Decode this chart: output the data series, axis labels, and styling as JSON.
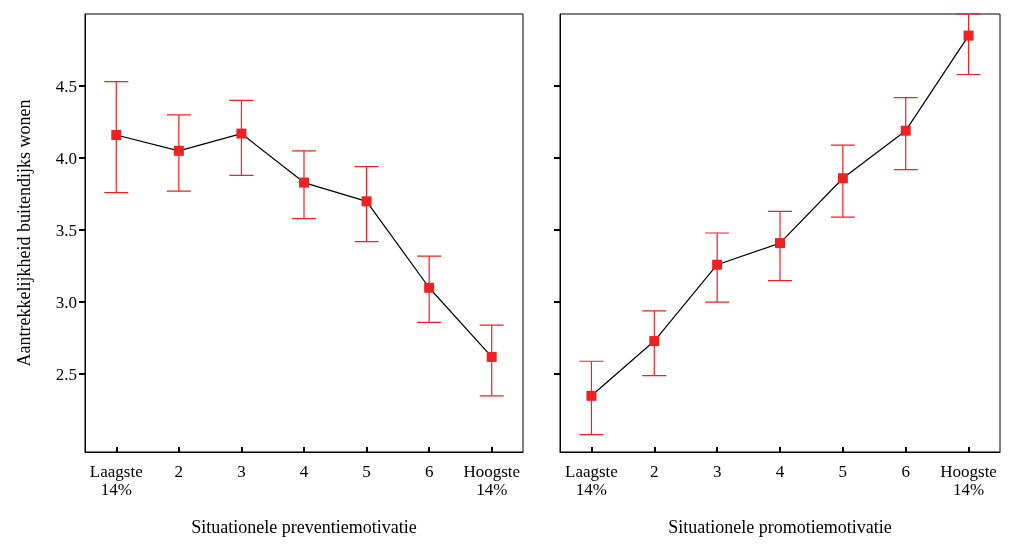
{
  "chart_data": [
    {
      "type": "line",
      "xlabel": "Situationele preventiemotivatie",
      "ylabel": "Aantrekkelijkheid buitendijks wonen",
      "categories": [
        "Laagste\n14%",
        "2",
        "3",
        "4",
        "5",
        "6",
        "Hoogste\n14%"
      ],
      "color": "#000000",
      "colors": [
        "#ee2222",
        "#ee2222",
        "#ee2222",
        "#ee2222",
        "#ee2222",
        "#ee2222",
        "#ee2222"
      ],
      "values": [
        4.16,
        4.05,
        4.17,
        3.83,
        3.7,
        3.1,
        2.62
      ],
      "errors": [
        [
          3.76,
          4.53
        ],
        [
          3.77,
          4.3
        ],
        [
          3.88,
          4.4
        ],
        [
          3.58,
          4.05
        ],
        [
          3.42,
          3.94
        ],
        [
          2.86,
          3.32
        ],
        [
          2.35,
          2.84
        ]
      ],
      "ylim": [
        1.96,
        5.0
      ],
      "yticks": [
        2.5,
        {
          "value": 3,
          "label": "3.0"
        },
        3.5,
        {
          "value": 4,
          "label": "4.0"
        },
        4.5
      ],
      "marker": "square",
      "grid": false
    },
    {
      "type": "line",
      "xlabel": "Situationele promotiemotivatie",
      "categories": [
        "Laagste\n14%",
        "2",
        "3",
        "4",
        "5",
        "6",
        "Hoogste\n14%"
      ],
      "color": "#000000",
      "colors": [
        "#ee2222",
        "#ee2222",
        "#ee2222",
        "#ee2222",
        "#ee2222",
        "#ee2222",
        "#ee2222"
      ],
      "values": [
        2.35,
        2.73,
        3.26,
        3.41,
        3.86,
        4.19,
        4.85
      ],
      "errors": [
        [
          2.08,
          2.59
        ],
        [
          2.49,
          2.94
        ],
        [
          3.0,
          3.48
        ],
        [
          3.15,
          3.63
        ],
        [
          3.59,
          4.09
        ],
        [
          3.92,
          4.42
        ],
        [
          4.58,
          5.0
        ]
      ],
      "ylim": [
        1.96,
        5.0
      ],
      "yticks": [
        2.5,
        3,
        3.5,
        4,
        4.5
      ],
      "tick_labels": "x",
      "marker": "square",
      "grid": false
    }
  ]
}
